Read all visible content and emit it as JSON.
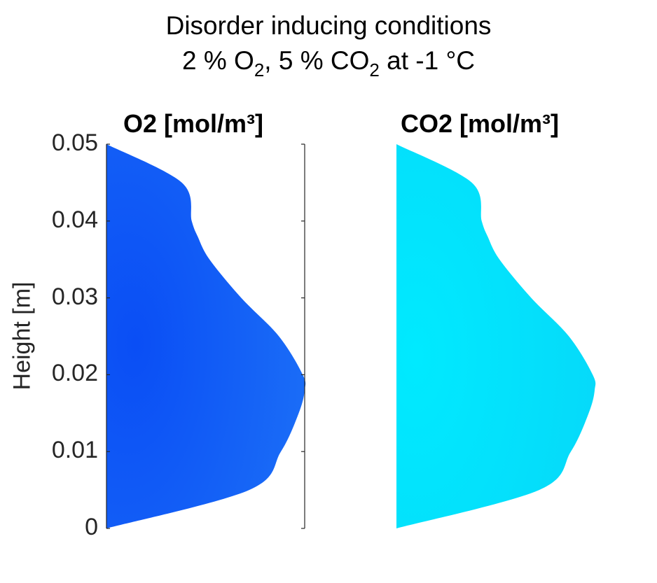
{
  "title": {
    "line1": "Disorder inducing conditions",
    "line2_part1": "2 % O",
    "line2_sub1": "2",
    "line2_part2": ",  5 % CO",
    "line2_sub2": "2",
    "line2_part3": "  at  -1 °C"
  },
  "colors": {
    "o2_fill_center": "#0a4ef5",
    "o2_fill_edge": "#1a6cf7",
    "co2_fill_center": "#00eaff",
    "co2_fill_edge": "#06d9f9",
    "axis": "#262626"
  },
  "chart_data": [
    {
      "type": "area",
      "title": "O2 [mol/m³]",
      "ylabel": "Height [m]",
      "ylim": [
        0,
        0.05
      ],
      "yticks": [
        "0",
        "0.01",
        "0.02",
        "0.03",
        "0.04",
        "0.05"
      ],
      "grid": false,
      "profile": {
        "description_of_shape": "half radial cross-section",
        "height": [
          0,
          0.005,
          0.01,
          0.015,
          0.018,
          0.02,
          0.025,
          0.03,
          0.035,
          0.038,
          0.04,
          0.045,
          0.05
        ],
        "half_width": [
          0,
          0.72,
          0.88,
          0.97,
          1.0,
          0.99,
          0.87,
          0.68,
          0.52,
          0.46,
          0.43,
          0.38,
          0
        ]
      }
    },
    {
      "type": "area",
      "title": "CO2 [mol/m³]",
      "ylim": [
        0,
        0.05
      ],
      "grid": false,
      "profile": {
        "height": [
          0,
          0.005,
          0.01,
          0.015,
          0.018,
          0.02,
          0.025,
          0.03,
          0.035,
          0.038,
          0.04,
          0.045,
          0.05
        ],
        "half_width": [
          0,
          0.72,
          0.88,
          0.97,
          1.0,
          0.99,
          0.87,
          0.68,
          0.52,
          0.46,
          0.43,
          0.38,
          0
        ]
      }
    }
  ]
}
